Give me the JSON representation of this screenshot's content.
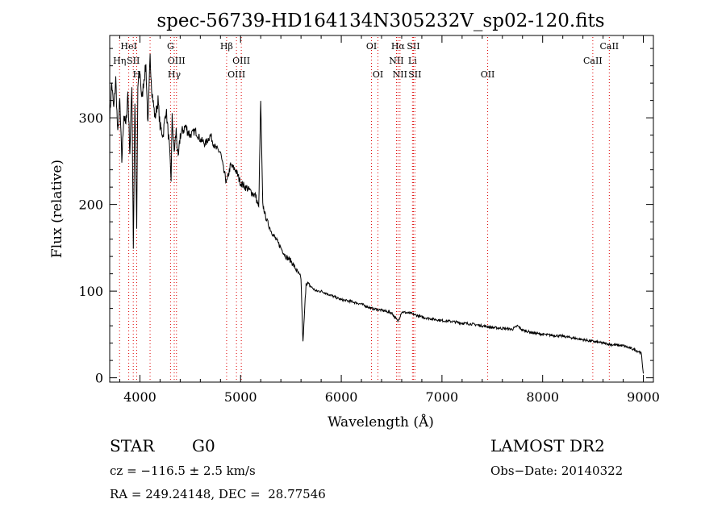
{
  "chart_data": {
    "type": "line",
    "title": "spec-56739-HD164134N305232V_sp02-120.fits",
    "xlabel": "Wavelength (Å)",
    "ylabel": "Flux (relative)",
    "xlim": [
      3700,
      9100
    ],
    "ylim": [
      -5,
      395
    ],
    "xticks": [
      4000,
      5000,
      6000,
      7000,
      8000,
      9000
    ],
    "yticks": [
      0,
      100,
      200,
      300
    ],
    "grid": false,
    "line_color": "#000000",
    "marker_color": "#dd0000",
    "spectrum": {
      "x": [
        3700,
        3720,
        3740,
        3760,
        3780,
        3800,
        3820,
        3840,
        3860,
        3880,
        3900,
        3920,
        3935,
        3950,
        3968,
        3980,
        4000,
        4020,
        4040,
        4060,
        4080,
        4101,
        4120,
        4150,
        4180,
        4200,
        4230,
        4260,
        4290,
        4310,
        4320,
        4340,
        4360,
        4380,
        4400,
        4450,
        4500,
        4550,
        4600,
        4650,
        4700,
        4750,
        4800,
        4830,
        4861,
        4900,
        4950,
        5000,
        5050,
        5100,
        5150,
        5180,
        5200,
        5220,
        5250,
        5300,
        5350,
        5400,
        5450,
        5500,
        5550,
        5600,
        5620,
        5650,
        5700,
        5750,
        5800,
        5900,
        6000,
        6100,
        6200,
        6300,
        6400,
        6500,
        6563,
        6600,
        6700,
        6800,
        6900,
        7000,
        7100,
        7200,
        7300,
        7400,
        7500,
        7600,
        7700,
        7750,
        7800,
        7900,
        8000,
        8100,
        8200,
        8300,
        8400,
        8500,
        8600,
        8700,
        8800,
        8900,
        8960,
        8980,
        9000
      ],
      "y": [
        300,
        340,
        310,
        345,
        280,
        320,
        250,
        305,
        290,
        330,
        260,
        340,
        150,
        320,
        170,
        335,
        355,
        320,
        345,
        360,
        290,
        370,
        330,
        300,
        320,
        290,
        280,
        310,
        270,
        230,
        300,
        260,
        285,
        250,
        280,
        290,
        280,
        285,
        275,
        270,
        280,
        265,
        260,
        240,
        225,
        245,
        240,
        225,
        220,
        215,
        210,
        195,
        320,
        200,
        185,
        170,
        160,
        150,
        140,
        135,
        125,
        115,
        40,
        110,
        105,
        100,
        100,
        95,
        90,
        88,
        85,
        80,
        78,
        75,
        65,
        76,
        74,
        70,
        68,
        66,
        65,
        63,
        62,
        60,
        58,
        57,
        56,
        60,
        55,
        52,
        50,
        49,
        48,
        46,
        44,
        42,
        40,
        38,
        37,
        33,
        30,
        28,
        5
      ]
    },
    "line_markers": [
      {
        "x": 3798,
        "label": "Hη",
        "row": 1
      },
      {
        "x": 3889,
        "label": "HeI",
        "row": 0
      },
      {
        "x": 3934,
        "label": "SII",
        "row": 1
      },
      {
        "x": 3968,
        "label": "H",
        "row": 2
      },
      {
        "x": 4101,
        "label": "",
        "row": 0
      },
      {
        "x": 4304,
        "label": "G",
        "row": 0
      },
      {
        "x": 4341,
        "label": "Hγ",
        "row": 2
      },
      {
        "x": 4363,
        "label": "OIII",
        "row": 1
      },
      {
        "x": 4861,
        "label": "Hβ",
        "row": 0
      },
      {
        "x": 4959,
        "label": "OIII",
        "row": 2
      },
      {
        "x": 5007,
        "label": "OIII",
        "row": 1
      },
      {
        "x": 6300,
        "label": "OI",
        "row": 0
      },
      {
        "x": 6364,
        "label": "OI",
        "row": 2
      },
      {
        "x": 6548,
        "label": "NII",
        "row": 1
      },
      {
        "x": 6563,
        "label": "Hα",
        "row": 0
      },
      {
        "x": 6583,
        "label": "NII",
        "row": 2
      },
      {
        "x": 6707,
        "label": "Li",
        "row": 1
      },
      {
        "x": 6716,
        "label": "SII",
        "row": 0
      },
      {
        "x": 6731,
        "label": "SII",
        "row": 2
      },
      {
        "x": 7454,
        "label": "OII",
        "row": 2
      },
      {
        "x": 8498,
        "label": "CaII",
        "row": 1
      },
      {
        "x": 8662,
        "label": "CaII",
        "row": 0
      }
    ]
  },
  "info": {
    "object_class": "STAR",
    "subclass": "G0",
    "survey": "LAMOST DR2",
    "cz": "cz = −116.5 ± 2.5 km/s",
    "obs_date": "Obs−Date: 20140322",
    "coords": "RA = 249.24148, DEC =  28.77546"
  }
}
